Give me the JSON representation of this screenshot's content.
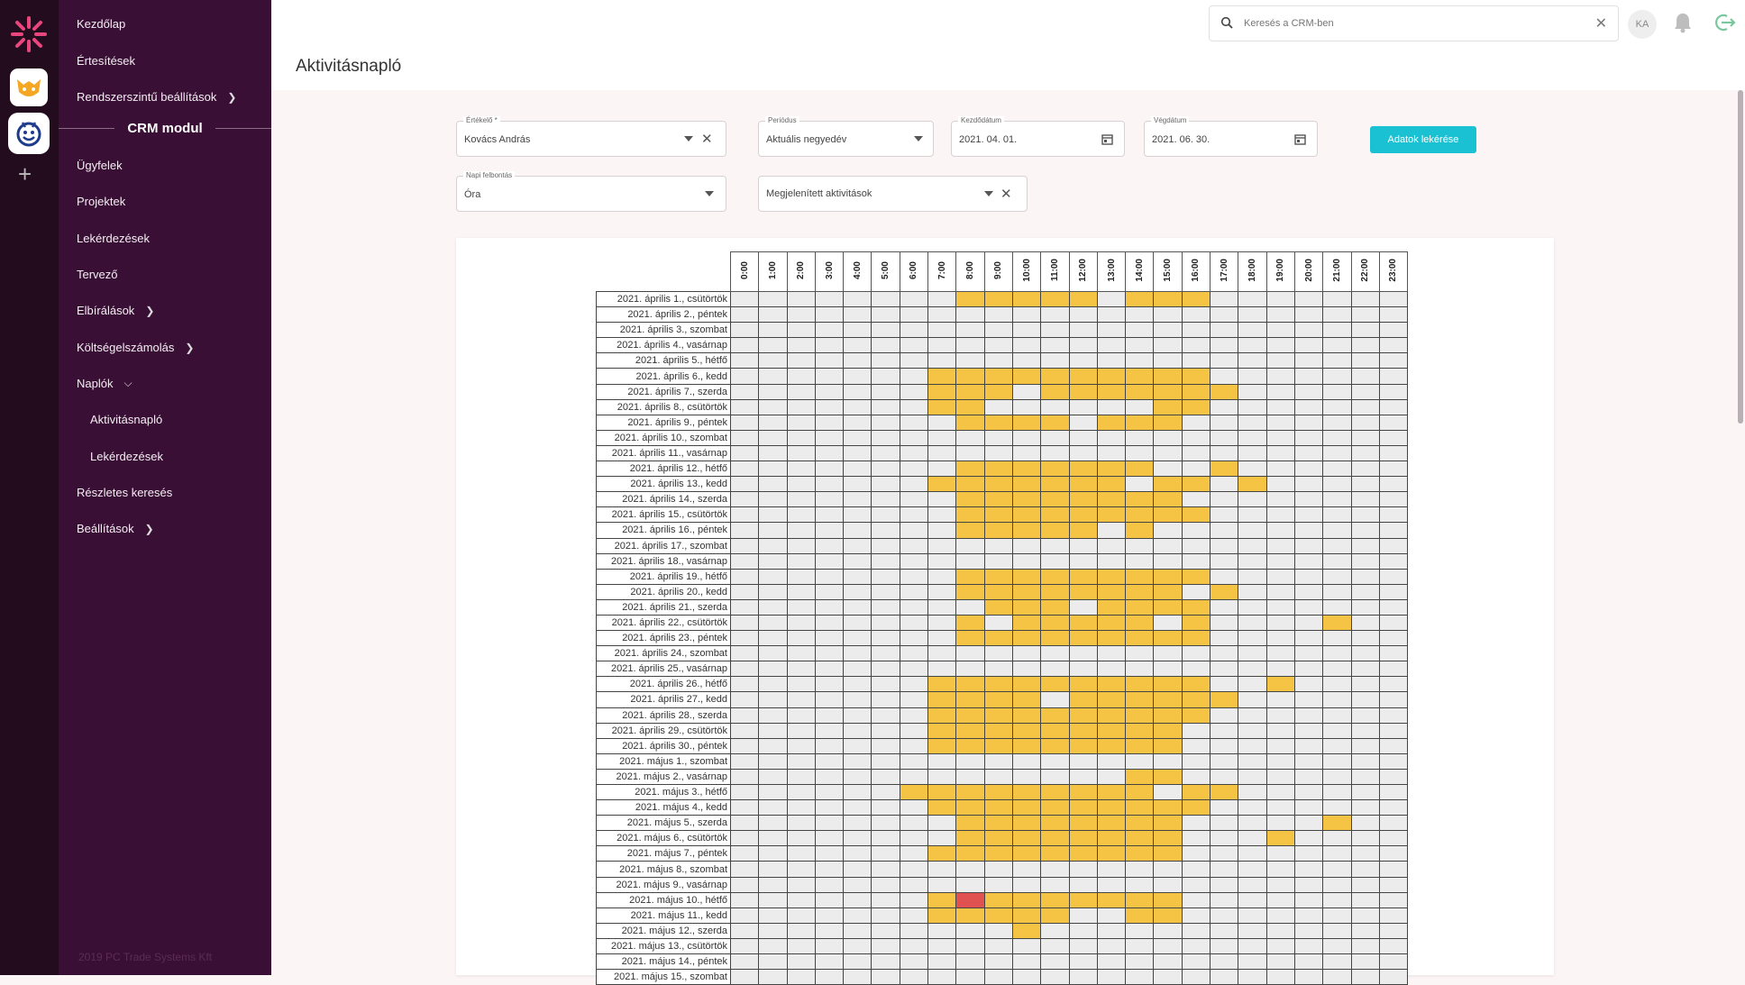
{
  "rail": {
    "apps": [
      "logo-icon",
      "fox-app-icon",
      "smile-app-icon"
    ],
    "add_label": "+"
  },
  "sidemenu": {
    "items": [
      {
        "label": "Kezdőlap"
      },
      {
        "label": "Értesítések"
      },
      {
        "label": "Rendszerszintű beállítások"
      },
      {
        "label": "Ügyfelek"
      },
      {
        "label": "Projektek"
      },
      {
        "label": "Lekérdezések"
      },
      {
        "label": "Tervező"
      },
      {
        "label": "Elbírálások"
      },
      {
        "label": "Költségelszámolás"
      },
      {
        "label": "Naplók"
      },
      {
        "label": "Aktivitásnapló"
      },
      {
        "label": "Lekérdezések"
      },
      {
        "label": "Részletes keresés"
      },
      {
        "label": "Beállítások"
      }
    ],
    "section_title": "CRM modul",
    "footer": "2019 PC Trade Systems Kft"
  },
  "topbar": {
    "search_placeholder": "Keresés a CRM-ben",
    "avatar_initials": "KA"
  },
  "page": {
    "title": "Aktivitásnapló"
  },
  "filters": {
    "evaluator": {
      "label": "Értékelő *",
      "value": "Kovács András"
    },
    "period": {
      "label": "Periódus",
      "value": "Aktuális negyedév"
    },
    "start_date": {
      "label": "Kezdődátum",
      "value": "2021. 04. 01."
    },
    "end_date": {
      "label": "Végdátum",
      "value": "2021. 06. 30."
    },
    "resolution": {
      "label": "Napi felbontás",
      "value": "Óra"
    },
    "activities": {
      "value": "Megjelenített aktivitások"
    },
    "fetch_button": "Adatok lekérése"
  },
  "colors": {
    "active": "#f5c444",
    "alert": "#e05252",
    "inactive": "#ececec",
    "accent": "#19c1d2",
    "sidebar": "#3a0f35"
  },
  "grid": {
    "hours": [
      "0:00",
      "1:00",
      "2:00",
      "3:00",
      "4:00",
      "5:00",
      "6:00",
      "7:00",
      "8:00",
      "9:00",
      "10:00",
      "11:00",
      "12:00",
      "13:00",
      "14:00",
      "15:00",
      "16:00",
      "17:00",
      "18:00",
      "19:00",
      "20:00",
      "21:00",
      "22:00",
      "23:00"
    ],
    "rows": [
      {
        "date": "2021. április 1., csütörtök",
        "active": [
          8,
          9,
          10,
          11,
          12,
          14,
          15,
          16
        ]
      },
      {
        "date": "2021. április 2., péntek",
        "active": []
      },
      {
        "date": "2021. április 3., szombat",
        "active": []
      },
      {
        "date": "2021. április 4., vasárnap",
        "active": []
      },
      {
        "date": "2021. április 5., hétfő",
        "active": []
      },
      {
        "date": "2021. április 6., kedd",
        "active": [
          7,
          8,
          9,
          10,
          11,
          12,
          13,
          14,
          15,
          16
        ]
      },
      {
        "date": "2021. április 7., szerda",
        "active": [
          7,
          8,
          9,
          11,
          12,
          13,
          14,
          15,
          16,
          17
        ]
      },
      {
        "date": "2021. április 8., csütörtök",
        "active": [
          7,
          8,
          15,
          16
        ]
      },
      {
        "date": "2021. április 9., péntek",
        "active": [
          8,
          9,
          10,
          11,
          13,
          14,
          15
        ]
      },
      {
        "date": "2021. április 10., szombat",
        "active": []
      },
      {
        "date": "2021. április 11., vasárnap",
        "active": []
      },
      {
        "date": "2021. április 12., hétfő",
        "active": [
          8,
          9,
          10,
          11,
          12,
          13,
          14,
          17
        ]
      },
      {
        "date": "2021. április 13., kedd",
        "active": [
          7,
          8,
          9,
          10,
          11,
          12,
          13,
          15,
          16,
          18
        ]
      },
      {
        "date": "2021. április 14., szerda",
        "active": [
          8,
          9,
          10,
          11,
          12,
          13,
          14,
          15
        ]
      },
      {
        "date": "2021. április 15., csütörtök",
        "active": [
          8,
          9,
          10,
          11,
          12,
          13,
          14,
          15,
          16
        ]
      },
      {
        "date": "2021. április 16., péntek",
        "active": [
          8,
          9,
          10,
          11,
          12,
          14
        ]
      },
      {
        "date": "2021. április 17., szombat",
        "active": []
      },
      {
        "date": "2021. április 18., vasárnap",
        "active": []
      },
      {
        "date": "2021. április 19., hétfő",
        "active": [
          8,
          9,
          10,
          11,
          12,
          13,
          14,
          15,
          16
        ]
      },
      {
        "date": "2021. április 20., kedd",
        "active": [
          8,
          9,
          10,
          11,
          12,
          13,
          14,
          15,
          17
        ]
      },
      {
        "date": "2021. április 21., szerda",
        "active": [
          9,
          10,
          11,
          13,
          14,
          15,
          16
        ]
      },
      {
        "date": "2021. április 22., csütörtök",
        "active": [
          8,
          10,
          11,
          12,
          13,
          14,
          16,
          21
        ]
      },
      {
        "date": "2021. április 23., péntek",
        "active": [
          8,
          9,
          10,
          11,
          12,
          13,
          14,
          15,
          16
        ]
      },
      {
        "date": "2021. április 24., szombat",
        "active": []
      },
      {
        "date": "2021. április 25., vasárnap",
        "active": []
      },
      {
        "date": "2021. április 26., hétfő",
        "active": [
          7,
          8,
          9,
          10,
          11,
          12,
          13,
          14,
          15,
          16,
          19
        ]
      },
      {
        "date": "2021. április 27., kedd",
        "active": [
          7,
          8,
          9,
          10,
          12,
          13,
          14,
          15,
          16,
          17
        ]
      },
      {
        "date": "2021. április 28., szerda",
        "active": [
          7,
          8,
          9,
          10,
          11,
          12,
          13,
          14,
          15,
          16
        ]
      },
      {
        "date": "2021. április 29., csütörtök",
        "active": [
          7,
          8,
          9,
          10,
          11,
          12,
          13,
          14,
          15
        ]
      },
      {
        "date": "2021. április 30., péntek",
        "active": [
          7,
          8,
          9,
          10,
          11,
          12,
          13,
          14,
          15
        ]
      },
      {
        "date": "2021. május 1., szombat",
        "active": []
      },
      {
        "date": "2021. május 2., vasárnap",
        "active": [
          14,
          15
        ]
      },
      {
        "date": "2021. május 3., hétfő",
        "active": [
          6,
          7,
          8,
          9,
          10,
          11,
          12,
          13,
          14,
          16,
          17
        ]
      },
      {
        "date": "2021. május 4., kedd",
        "active": [
          7,
          8,
          9,
          10,
          11,
          12,
          13,
          14,
          15,
          16
        ]
      },
      {
        "date": "2021. május 5., szerda",
        "active": [
          8,
          9,
          10,
          11,
          12,
          13,
          14,
          15,
          21
        ]
      },
      {
        "date": "2021. május 6., csütörtök",
        "active": [
          8,
          9,
          10,
          11,
          12,
          13,
          14,
          15,
          19
        ]
      },
      {
        "date": "2021. május 7., péntek",
        "active": [
          7,
          8,
          9,
          10,
          11,
          12,
          13,
          14,
          15
        ]
      },
      {
        "date": "2021. május 8., szombat",
        "active": []
      },
      {
        "date": "2021. május 9., vasárnap",
        "active": []
      },
      {
        "date": "2021. május 10., hétfő",
        "active": [
          7,
          9,
          10,
          11,
          12,
          13,
          14,
          15
        ],
        "alert": [
          8
        ]
      },
      {
        "date": "2021. május 11., kedd",
        "active": [
          7,
          8,
          9,
          10,
          11,
          14,
          15
        ]
      },
      {
        "date": "2021. május 12., szerda",
        "active": [
          10
        ]
      },
      {
        "date": "2021. május 13., csütörtök",
        "active": []
      },
      {
        "date": "2021. május 14., péntek",
        "active": []
      },
      {
        "date": "2021. május 15., szombat",
        "active": []
      }
    ]
  }
}
